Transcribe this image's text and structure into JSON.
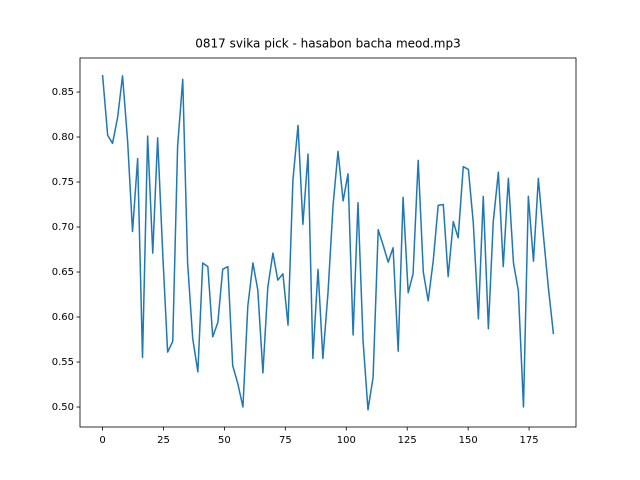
{
  "chart_data": {
    "type": "line",
    "title": "0817 svika pick - hasabon bacha meod.mp3",
    "x": [
      0,
      2.1,
      4.1,
      6.2,
      8.2,
      10.3,
      12.3,
      14.4,
      16.4,
      18.5,
      20.6,
      22.6,
      24.7,
      26.7,
      28.8,
      30.8,
      32.9,
      34.9,
      37.0,
      39.1,
      41.1,
      43.2,
      45.2,
      47.3,
      49.3,
      51.4,
      53.4,
      55.5,
      57.6,
      59.6,
      61.7,
      63.7,
      65.8,
      67.8,
      69.9,
      71.9,
      74.0,
      76.1,
      78.1,
      80.2,
      82.2,
      84.3,
      86.3,
      88.4,
      90.4,
      92.5,
      94.6,
      96.6,
      98.7,
      100.7,
      102.8,
      104.8,
      106.9,
      108.9,
      111.0,
      113.1,
      115.1,
      117.2,
      119.2,
      121.3,
      123.3,
      125.4,
      127.4,
      129.5,
      131.6,
      133.6,
      135.7,
      137.7,
      139.8,
      141.8,
      143.9,
      145.9,
      148.0,
      150.1,
      152.1,
      154.2,
      156.2,
      158.3,
      160.3,
      162.4,
      164.4,
      166.5,
      168.6,
      170.6,
      172.7,
      174.7,
      176.8,
      178.8,
      180.9,
      182.9,
      185.0
    ],
    "series": [
      {
        "color": "#1f77b4",
        "values": [
          0.869,
          0.802,
          0.793,
          0.822,
          0.868,
          0.795,
          0.695,
          0.776,
          0.555,
          0.801,
          0.671,
          0.799,
          0.67,
          0.561,
          0.573,
          0.79,
          0.864,
          0.66,
          0.576,
          0.539,
          0.66,
          0.656,
          0.578,
          0.594,
          0.653,
          0.656,
          0.546,
          0.526,
          0.5,
          0.612,
          0.66,
          0.63,
          0.538,
          0.633,
          0.671,
          0.641,
          0.648,
          0.591,
          0.752,
          0.813,
          0.703,
          0.781,
          0.554,
          0.653,
          0.554,
          0.627,
          0.725,
          0.784,
          0.729,
          0.759,
          0.58,
          0.727,
          0.573,
          0.497,
          0.533,
          0.697,
          0.68,
          0.661,
          0.677,
          0.562,
          0.733,
          0.627,
          0.648,
          0.774,
          0.65,
          0.618,
          0.663,
          0.724,
          0.725,
          0.645,
          0.706,
          0.688,
          0.767,
          0.764,
          0.705,
          0.598,
          0.734,
          0.587,
          0.706,
          0.761,
          0.656,
          0.754,
          0.66,
          0.629,
          0.5,
          0.734,
          0.662,
          0.754,
          0.69,
          0.633,
          0.581
        ]
      }
    ],
    "xlim": [
      -9.25,
      194.25
    ],
    "xticks": [
      0,
      25,
      50,
      75,
      100,
      125,
      150,
      175
    ],
    "ylim": [
      0.4778,
      0.8878
    ],
    "yticks": [
      {
        "value": 0.5,
        "label": "0.50"
      },
      0.55,
      {
        "value": 0.6,
        "label": "0.60"
      },
      0.65,
      {
        "value": 0.7,
        "label": "0.70"
      },
      0.75,
      {
        "value": 0.8,
        "label": "0.80"
      },
      0.85
    ]
  }
}
